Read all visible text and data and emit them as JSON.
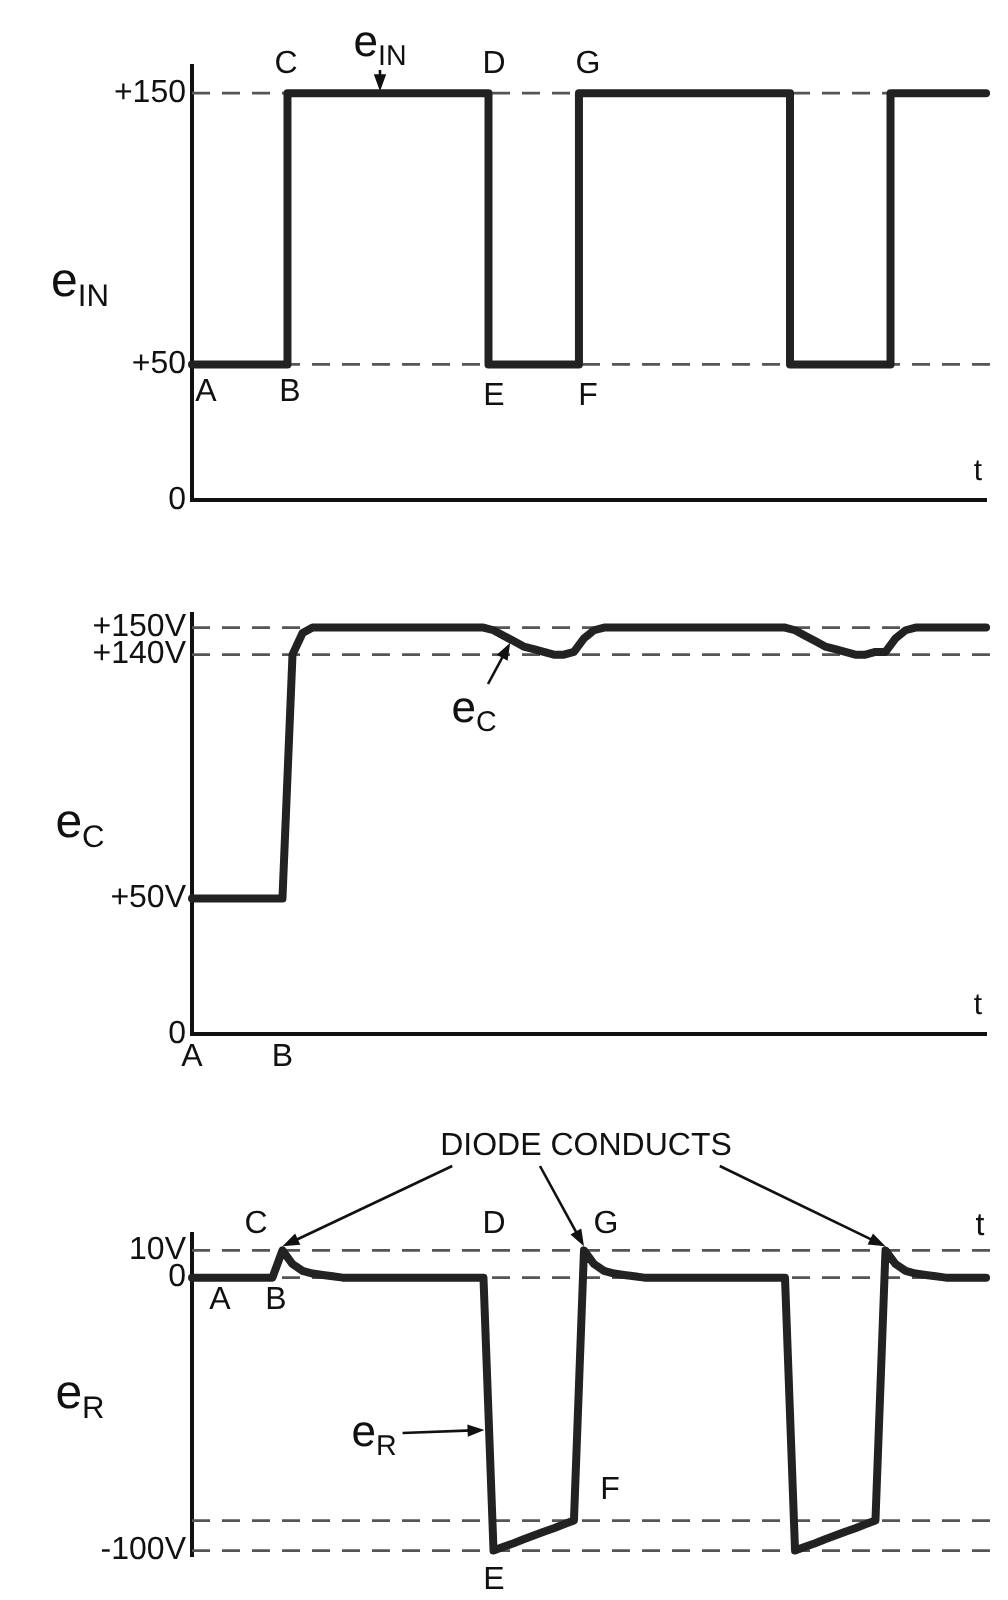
{
  "chart_data": [
    {
      "type": "step",
      "ylabel": "e$_{IN}$",
      "xlabel": "t",
      "ylim": [
        0,
        160
      ],
      "yticks": [
        {
          "value": 0,
          "label": "0"
        },
        {
          "value": 50,
          "label": "+50"
        },
        {
          "value": 150,
          "label": "+150"
        }
      ],
      "tick_labels": "y",
      "grid": false,
      "legend": false,
      "marker": "none",
      "line_style": "solid",
      "categories": [
        null,
        null,
        null,
        null,
        null,
        null,
        null,
        null,
        null,
        null,
        null,
        null,
        null,
        null,
        null,
        null,
        null,
        null,
        null,
        null,
        null,
        null,
        null,
        null,
        null,
        null,
        null,
        null,
        null,
        null,
        null,
        null,
        null,
        null,
        null,
        null,
        null,
        null,
        null,
        null,
        null,
        null,
        null,
        null,
        null,
        null,
        null,
        null,
        null,
        null,
        null,
        null,
        null,
        null,
        null,
        null,
        null,
        null,
        null,
        null,
        null,
        null,
        null,
        null,
        null,
        null,
        null,
        null,
        null,
        null,
        null,
        null,
        null,
        null,
        null,
        null,
        null,
        null,
        null,
        null
      ],
      "series": [
        {
          "color": "#222222",
          "values": [
            50,
            50,
            50,
            50,
            50,
            50,
            50,
            50,
            50,
            50,
            150,
            150,
            150,
            150,
            150,
            150,
            150,
            150,
            150,
            150,
            150,
            150,
            150,
            150,
            150,
            150,
            150,
            150,
            150,
            150,
            50,
            50,
            50,
            50,
            50,
            50,
            50,
            50,
            50,
            150,
            150,
            150,
            150,
            150,
            150,
            150,
            150,
            150,
            150,
            150,
            150,
            150,
            150,
            150,
            150,
            150,
            150,
            150,
            150,
            150,
            50,
            50,
            50,
            50,
            50,
            50,
            50,
            50,
            50,
            50,
            150,
            150,
            150,
            150,
            150,
            150,
            150,
            150,
            150,
            150
          ]
        }
      ],
      "ref_lines": [
        {
          "axis": "y",
          "value": 150,
          "line_style": "dashed"
        },
        {
          "axis": "y",
          "value": 50,
          "line_style": "dashed"
        }
      ],
      "annotations": [
        "A",
        "B",
        "C",
        "D",
        "E",
        "F",
        "G",
        "e$_{IN}$"
      ]
    },
    {
      "type": "line",
      "ylabel": "e$_{C}$",
      "xlabel": "t",
      "ylim": [
        0,
        155
      ],
      "yticks": [
        {
          "value": 0,
          "label": "0"
        },
        {
          "value": 50,
          "label": "+50V"
        },
        {
          "value": 140,
          "label": "+140V"
        },
        {
          "value": 150,
          "label": "+150V"
        }
      ],
      "grid": false,
      "legend": false,
      "marker": "none",
      "line_style": "solid",
      "categories": [
        "A",
        null,
        null,
        null,
        null,
        null,
        null,
        null,
        null,
        "B",
        null,
        null,
        null,
        null,
        null,
        null,
        null,
        null,
        null,
        null,
        null,
        null,
        null,
        null,
        null,
        null,
        null,
        null,
        null,
        null,
        null,
        null,
        null,
        null,
        null,
        null,
        null,
        null,
        null,
        null,
        null,
        null,
        null,
        null,
        null,
        null,
        null,
        null,
        null,
        null,
        null,
        null,
        null,
        null,
        null,
        null,
        null,
        null,
        null,
        null,
        null,
        null,
        null,
        null,
        null,
        null,
        null,
        null,
        null,
        null,
        null,
        null,
        null,
        null,
        null,
        null,
        null,
        null,
        null,
        null
      ],
      "series": [
        {
          "color": "#222222",
          "values": [
            50,
            50,
            50,
            50,
            50,
            50,
            50,
            50,
            50,
            50,
            140,
            148,
            150,
            150,
            150,
            150,
            150,
            150,
            150,
            150,
            150,
            150,
            150,
            150,
            150,
            150,
            150,
            150,
            150,
            150,
            149,
            147,
            145,
            143,
            142,
            141,
            140,
            140,
            141,
            146,
            149,
            150,
            150,
            150,
            150,
            150,
            150,
            150,
            150,
            150,
            150,
            150,
            150,
            150,
            150,
            150,
            150,
            150,
            150,
            150,
            149,
            147,
            145,
            143,
            142,
            141,
            140,
            140,
            141,
            141,
            146,
            149,
            150,
            150,
            150,
            150,
            150,
            150,
            150,
            150
          ]
        }
      ],
      "ref_lines": [
        {
          "axis": "y",
          "value": 150,
          "line_style": "dashed"
        },
        {
          "axis": "y",
          "value": 140,
          "line_style": "dashed"
        }
      ],
      "annotations": [
        "e$_{C}$"
      ]
    },
    {
      "type": "line",
      "ylabel": "e$_{R}$",
      "ylim": [
        -102,
        16
      ],
      "yticks": [
        {
          "value": 10,
          "label": "10V"
        },
        {
          "value": 0,
          "label": "0"
        },
        {
          "value": -100,
          "label": "-100V"
        }
      ],
      "tick_labels": "y",
      "grid": false,
      "legend": false,
      "marker": "none",
      "line_style": "solid",
      "categories": [
        null,
        null,
        null,
        null,
        null,
        null,
        null,
        null,
        null,
        null,
        null,
        null,
        null,
        null,
        null,
        null,
        null,
        null,
        null,
        null,
        null,
        null,
        null,
        null,
        null,
        null,
        null,
        null,
        null,
        null,
        null,
        null,
        null,
        null,
        null,
        null,
        null,
        null,
        null,
        null,
        null,
        null,
        null,
        null,
        null,
        null,
        null,
        null,
        null,
        null,
        null,
        null,
        null,
        null,
        null,
        null,
        null,
        null,
        null,
        null,
        null,
        null,
        null,
        null,
        null,
        null,
        null,
        null,
        null,
        null,
        null,
        null,
        null,
        null,
        null,
        null,
        null,
        null,
        null,
        null
      ],
      "series": [
        {
          "color": "#222222",
          "values": [
            0,
            0,
            0,
            0,
            0,
            0,
            0,
            0,
            0,
            10,
            5,
            2.5,
            1.5,
            1,
            0.5,
            0,
            0,
            0,
            0,
            0,
            0,
            0,
            0,
            0,
            0,
            0,
            0,
            0,
            0,
            0,
            -100,
            -98.6,
            -97.3,
            -95.9,
            -94.5,
            -93.1,
            -91.8,
            -90.4,
            -89,
            10,
            5,
            2.5,
            1.5,
            1,
            0.5,
            0,
            0,
            0,
            0,
            0,
            0,
            0,
            0,
            0,
            0,
            0,
            0,
            0,
            0,
            0,
            -100,
            -98.6,
            -97.3,
            -95.9,
            -94.5,
            -93.1,
            -91.8,
            -90.4,
            -89,
            10,
            5,
            2.5,
            1.5,
            1,
            0.5,
            0,
            0,
            0,
            0,
            0
          ]
        }
      ],
      "ref_lines": [
        {
          "axis": "y",
          "value": 10,
          "line_style": "dashed"
        },
        {
          "axis": "y",
          "value": 0,
          "line_style": "dashed"
        },
        {
          "axis": "y",
          "value": -89,
          "line_style": "dashed"
        },
        {
          "axis": "y",
          "value": -100,
          "line_style": "dashed"
        }
      ],
      "annotations": [
        "DIODE CONDUCTS",
        "A",
        "B",
        "C",
        "D",
        "E",
        "F",
        "G",
        "e$_{R}$",
        "t"
      ]
    }
  ]
}
